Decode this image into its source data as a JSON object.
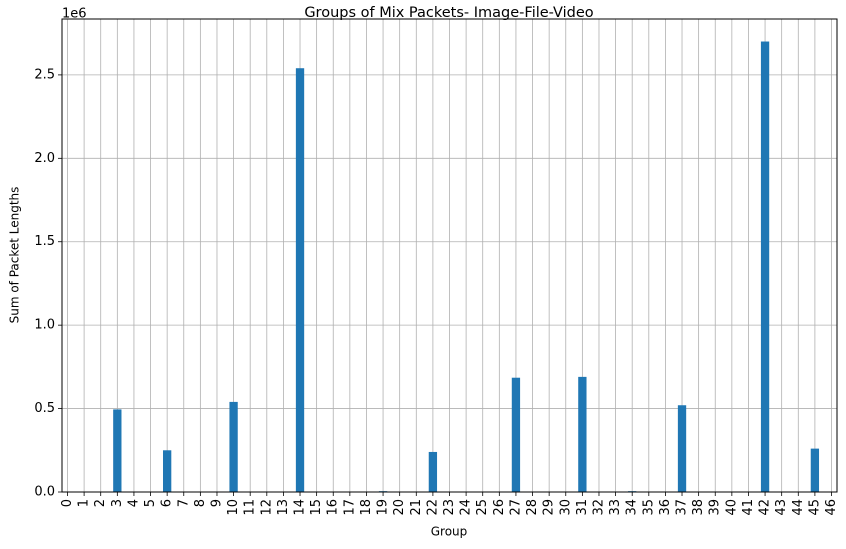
{
  "chart_data": {
    "type": "bar",
    "title": "Groups of Mix Packets- Image-File-Video",
    "xlabel": "Group",
    "ylabel": "Sum of Packet Lengths",
    "y_offset_text": "1e6",
    "y_multiplier": 1000000,
    "categories": [
      "0",
      "1",
      "2",
      "3",
      "4",
      "5",
      "6",
      "7",
      "8",
      "9",
      "10",
      "11",
      "12",
      "13",
      "14",
      "15",
      "16",
      "17",
      "18",
      "19",
      "20",
      "21",
      "22",
      "23",
      "24",
      "25",
      "26",
      "27",
      "28",
      "29",
      "30",
      "31",
      "32",
      "33",
      "34",
      "35",
      "36",
      "37",
      "38",
      "39",
      "40",
      "41",
      "42",
      "43",
      "44",
      "45",
      "46"
    ],
    "values": [
      0,
      0,
      0,
      495000,
      0,
      0,
      250000,
      0,
      0,
      0,
      540000,
      0,
      0,
      0,
      2540000,
      0,
      0,
      0,
      0,
      5000,
      0,
      0,
      240000,
      0,
      0,
      0,
      0,
      685000,
      0,
      0,
      0,
      690000,
      0,
      0,
      5000,
      0,
      0,
      520000,
      0,
      0,
      0,
      0,
      2700000,
      0,
      0,
      260000,
      0
    ],
    "yticks": [
      0.0,
      0.5,
      1.0,
      1.5,
      2.0,
      2.5
    ],
    "ytick_labels": [
      "0.0",
      "0.5",
      "1.0",
      "1.5",
      "2.0",
      "2.5"
    ],
    "ylim": [
      0,
      2835000
    ],
    "grid": true,
    "bar_color": "#1f77b4",
    "grid_color": "#b0b0b0"
  }
}
